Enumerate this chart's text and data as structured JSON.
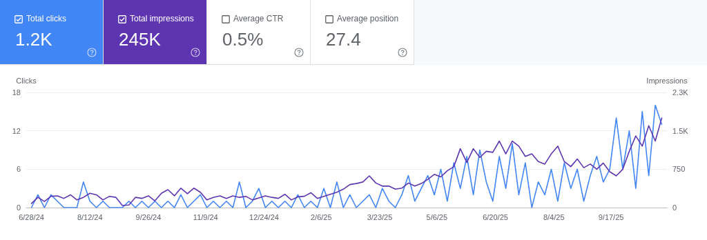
{
  "chart_data": [
    {
      "type": "other",
      "annotations": [
        "Total clicks",
        "1.2K",
        "Total impressions",
        "245K",
        "Average CTR",
        "0.5%",
        "Average position",
        "27.4"
      ],
      "colors": [
        "#4285f4",
        "#5e35b1",
        null,
        null
      ]
    },
    {
      "type": "line",
      "ylabel": "Clicks",
      "y2label": "Impressions",
      "x": [
        "2024-06-28",
        "2024-07-03",
        "2024-07-08",
        "2024-07-13",
        "2024-07-18",
        "2024-07-23",
        "2024-07-28",
        "2024-08-02",
        "2024-08-07",
        "2024-08-12",
        "2024-08-17",
        "2024-08-22",
        "2024-08-27",
        "2024-09-01",
        "2024-09-06",
        "2024-09-11",
        "2024-09-16",
        "2024-09-21",
        "2024-09-26",
        "2024-10-01",
        "2024-10-06",
        "2024-10-11",
        "2024-10-16",
        "2024-10-21",
        "2024-10-26",
        "2024-10-31",
        "2024-11-05",
        "2024-11-10",
        "2024-11-15",
        "2024-11-20",
        "2024-11-25",
        "2024-11-30",
        "2024-12-05",
        "2024-12-10",
        "2024-12-15",
        "2024-12-20",
        "2024-12-25",
        "2024-12-30",
        "2025-01-04",
        "2025-01-09",
        "2025-01-14",
        "2025-01-19",
        "2025-01-24",
        "2025-01-29",
        "2025-02-03",
        "2025-02-08",
        "2025-02-13",
        "2025-02-18",
        "2025-02-23",
        "2025-02-28",
        "2025-03-05",
        "2025-03-10",
        "2025-03-15",
        "2025-03-20",
        "2025-03-25",
        "2025-03-30",
        "2025-04-04",
        "2025-04-09",
        "2025-04-14",
        "2025-04-19",
        "2025-04-24",
        "2025-04-29",
        "2025-05-04",
        "2025-05-09",
        "2025-05-14",
        "2025-05-19",
        "2025-05-24",
        "2025-05-29",
        "2025-06-03",
        "2025-06-08",
        "2025-06-13",
        "2025-06-18",
        "2025-06-23",
        "2025-06-28",
        "2025-07-03",
        "2025-07-08",
        "2025-07-13",
        "2025-07-18",
        "2025-07-23",
        "2025-07-28",
        "2025-08-02",
        "2025-08-07",
        "2025-08-12",
        "2025-08-17",
        "2025-08-22",
        "2025-08-27",
        "2025-09-01",
        "2025-09-06",
        "2025-09-11",
        "2025-09-16",
        "2025-09-21",
        "2025-09-26",
        "2025-10-01",
        "2025-10-06",
        "2025-10-11",
        "2025-10-16",
        "2025-10-21",
        "2025-10-26"
      ],
      "series": [
        {
          "color": "#4285f4",
          "values": [
            0,
            2,
            0,
            2,
            1,
            0,
            0,
            0,
            4,
            1,
            0,
            1,
            0,
            0,
            0,
            1,
            0,
            1,
            0,
            1,
            0,
            1,
            0,
            2,
            0,
            1,
            2,
            0,
            1,
            0,
            1,
            0,
            4,
            0,
            1,
            3,
            0,
            1,
            0,
            1,
            0,
            2,
            0,
            1,
            0,
            3,
            0,
            4,
            0,
            2,
            0,
            1,
            2,
            0,
            3,
            1,
            0,
            2,
            5,
            1,
            3,
            5,
            2,
            6,
            1,
            7,
            3,
            8,
            2,
            9,
            4,
            1,
            8,
            3,
            10,
            2,
            7,
            0,
            4,
            2,
            6,
            1,
            7,
            3,
            6,
            1,
            5,
            8,
            4,
            6,
            14,
            6,
            12,
            3,
            15,
            5,
            16,
            13
          ]
        },
        {
          "color": "#5e35b1",
          "axis": "y2",
          "values": [
            80,
            200,
            120,
            220,
            230,
            180,
            250,
            150,
            200,
            280,
            250,
            150,
            220,
            200,
            40,
            50,
            200,
            180,
            230,
            130,
            280,
            350,
            230,
            380,
            270,
            380,
            300,
            150,
            200,
            230,
            180,
            230,
            200,
            220,
            150,
            190,
            230,
            200,
            180,
            260,
            150,
            210,
            220,
            290,
            180,
            220,
            260,
            300,
            360,
            450,
            470,
            500,
            620,
            480,
            420,
            420,
            360,
            380,
            480,
            420,
            470,
            550,
            650,
            600,
            720,
            800,
            1150,
            880,
            1150,
            980,
            1100,
            1080,
            1300,
            1050,
            1300,
            1200,
            1000,
            1050,
            900,
            850,
            1050,
            1200,
            900,
            800,
            950,
            780,
            850,
            750,
            870,
            700,
            620,
            750,
            1100,
            1400,
            1200,
            1600,
            1300,
            1750
          ]
        }
      ],
      "xlim": [
        "2024-06-24",
        "2025-10-30"
      ],
      "xticks": [
        {
          "value": "2024-06-28",
          "label": "6/28/24"
        },
        {
          "value": "2024-08-12",
          "label": "8/12/24"
        },
        {
          "value": "2024-09-26",
          "label": "9/26/24"
        },
        {
          "value": "2024-11-09",
          "label": "11/9/24"
        },
        {
          "value": "2024-12-24",
          "label": "12/24/24"
        },
        {
          "value": "2025-02-06",
          "label": "2/6/25"
        },
        {
          "value": "2025-03-23",
          "label": "3/23/25"
        },
        {
          "value": "2025-05-06",
          "label": "5/6/25"
        },
        {
          "value": "2025-06-20",
          "label": "6/20/25"
        },
        {
          "value": "2025-08-04",
          "label": "8/4/25"
        },
        {
          "value": "2025-09-17",
          "label": "9/17/25"
        }
      ],
      "ylim": [
        0,
        18
      ],
      "yticks": [
        0,
        6,
        12,
        18
      ],
      "y2lim": [
        0,
        2250
      ],
      "y2ticks": [
        0,
        750,
        {
          "value": 1500,
          "label": "1.5K"
        },
        {
          "value": 2250,
          "label": "2.3K"
        }
      ],
      "grid": "y",
      "marker": "none",
      "line_style": "solid"
    }
  ]
}
